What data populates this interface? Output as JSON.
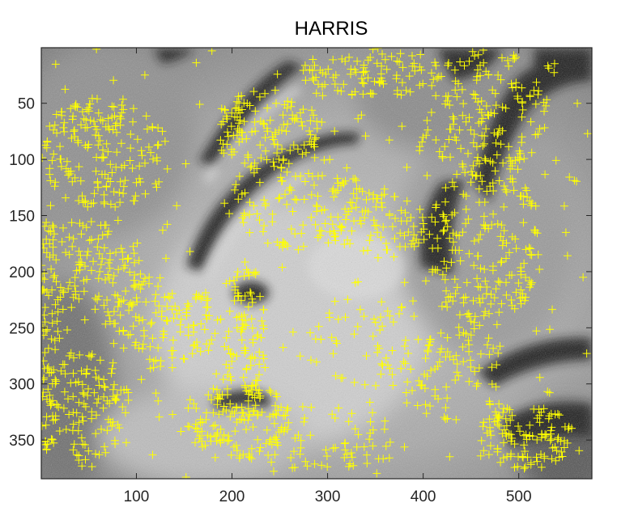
{
  "figure": {
    "title": "HARRIS"
  },
  "axes": {
    "x_ticks": [
      "100",
      "200",
      "300",
      "400",
      "500"
    ],
    "y_ticks": [
      "50",
      "100",
      "150",
      "200",
      "250",
      "300",
      "350"
    ],
    "xlim": [
      0.5,
      576.5
    ],
    "ylim": [
      0.5,
      384.5
    ],
    "y_direction": "reverse",
    "grid": false
  },
  "image": {
    "type": "grayscale photograph",
    "width": 576,
    "height": 384
  },
  "overlay": {
    "marker": "plus",
    "marker_color": "#ffff00"
  },
  "colors": {
    "axis": "#262626",
    "marker": "#ffff00",
    "background": "#ffffff"
  }
}
